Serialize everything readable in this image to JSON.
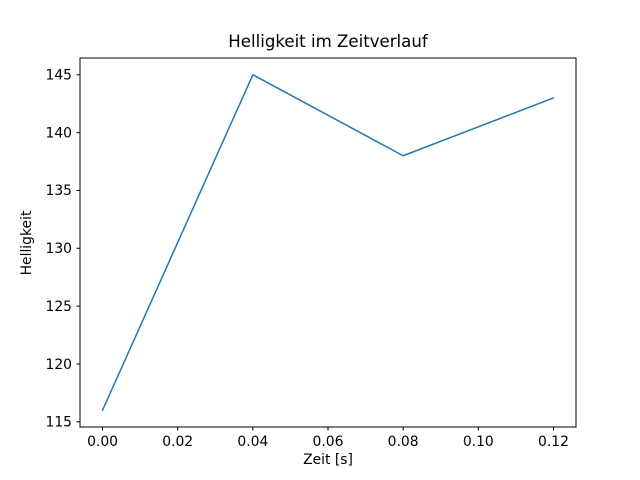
{
  "figure": {
    "background": "#ffffff"
  },
  "chart_data": {
    "type": "line",
    "title": "Helligkeit im Zeitverlauf",
    "xlabel": "Zeit [s]",
    "ylabel": "Helligkeit",
    "x": [
      0.0,
      0.04,
      0.08,
      0.12
    ],
    "values": [
      116,
      145,
      138,
      143
    ],
    "line_color": "#1f77b4",
    "line_width": 1.5,
    "markers": false,
    "xticks": {
      "values": [
        0.0,
        0.02,
        0.04,
        0.06,
        0.08,
        0.1,
        0.12
      ],
      "labels": [
        "0.00",
        "0.02",
        "0.04",
        "0.06",
        "0.08",
        "0.10",
        "0.12"
      ]
    },
    "yticks": {
      "values": [
        115,
        120,
        125,
        130,
        135,
        140,
        145
      ],
      "labels": [
        "115",
        "120",
        "125",
        "130",
        "135",
        "140",
        "145"
      ]
    },
    "xlim": [
      -0.006,
      0.126
    ],
    "ylim": [
      114.55,
      146.45
    ],
    "grid": false,
    "legend": "none",
    "axis_color": "#000000",
    "text_color": "#000000"
  }
}
